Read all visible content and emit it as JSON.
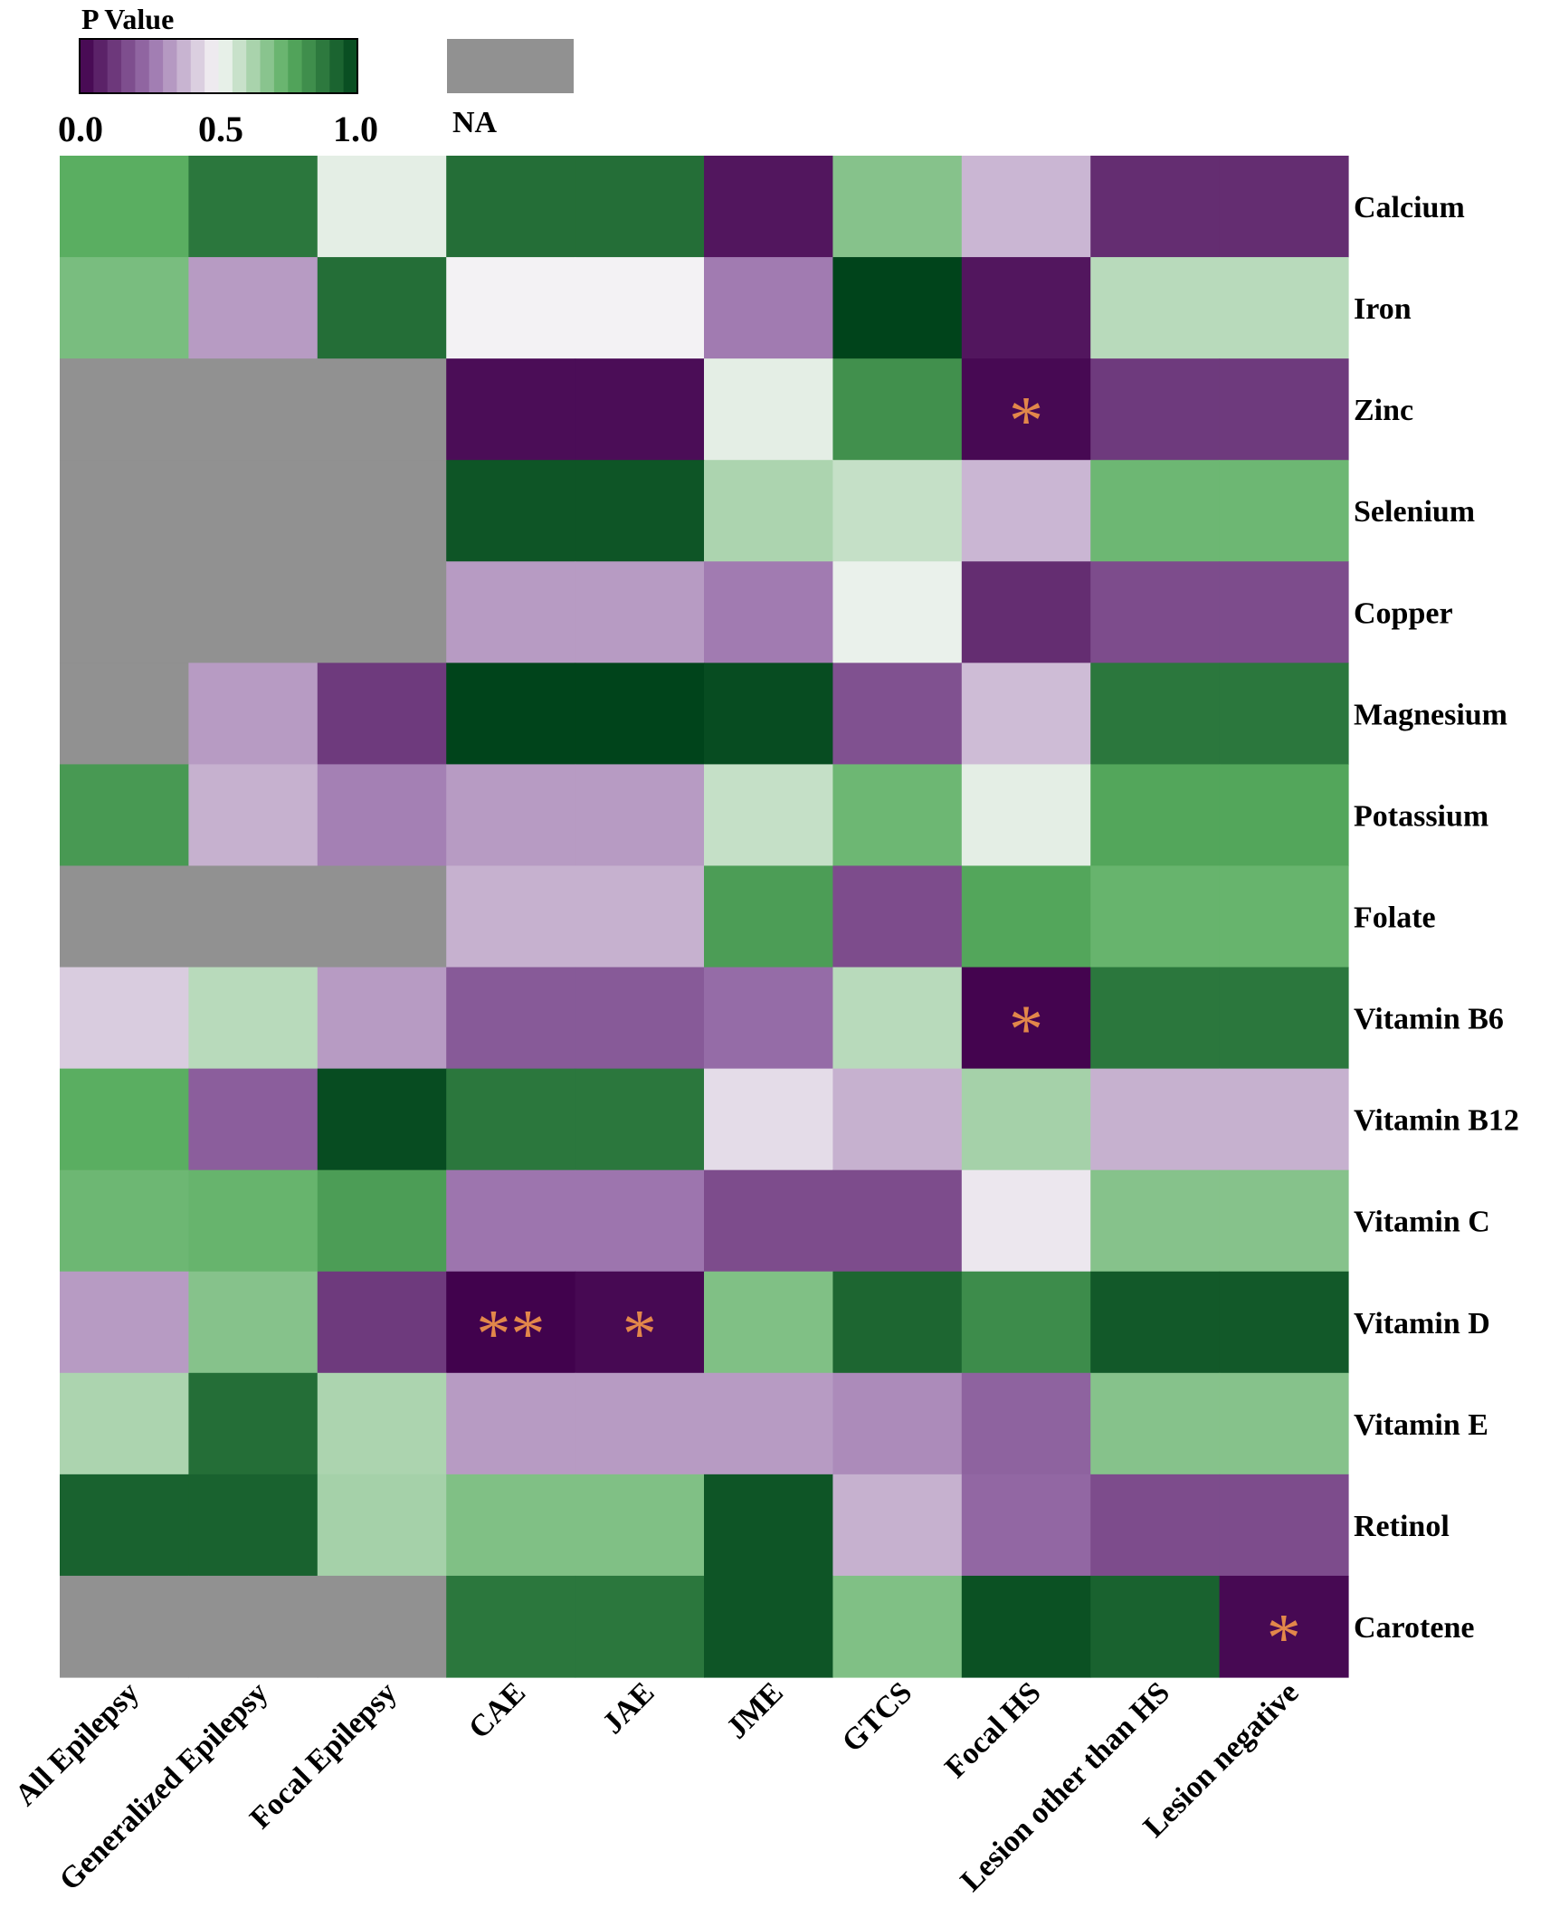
{
  "chart_data": {
    "type": "heatmap",
    "legend": {
      "title": "P Value",
      "ticks": [
        "0.0",
        "0.5",
        "1.0"
      ],
      "na_label": "NA",
      "na_color": "#919191",
      "low_color": "#40004b",
      "mid_color": "#f7f7f7",
      "high_color": "#00441b"
    },
    "significance_color": "#e2874a",
    "x_categories": [
      "All Epilepsy",
      "Generalized Epilepsy",
      "Focal Epilepsy",
      "CAE",
      "JAE",
      "JME",
      "GTCS",
      "Focal HS",
      "Lesion other than HS",
      "Lesion negative"
    ],
    "y_categories": [
      "Calcium",
      "Iron",
      "Zinc",
      "Selenium",
      "Copper",
      "Magnesium",
      "Potassium",
      "Folate",
      "Vitamin B6",
      "Vitamin B12",
      "Vitamin C",
      "Vitamin D",
      "Vitamin E",
      "Retinol",
      "Carotene"
    ],
    "values": [
      [
        0.75,
        0.88,
        0.53,
        0.9,
        0.9,
        0.05,
        0.68,
        0.38,
        0.1,
        0.1
      ],
      [
        0.7,
        0.33,
        0.9,
        0.49,
        0.49,
        0.27,
        1.0,
        0.05,
        0.6,
        0.6
      ],
      [
        null,
        null,
        null,
        0.03,
        0.03,
        0.53,
        0.82,
        0.02,
        0.13,
        0.13
      ],
      [
        null,
        null,
        null,
        0.96,
        0.96,
        0.62,
        0.58,
        0.38,
        0.72,
        0.72
      ],
      [
        null,
        null,
        null,
        0.33,
        0.33,
        0.27,
        0.52,
        0.1,
        0.17,
        0.17
      ],
      [
        null,
        0.33,
        0.13,
        1.0,
        1.0,
        0.98,
        0.18,
        0.39,
        0.88,
        0.88
      ],
      [
        0.8,
        0.37,
        0.28,
        0.33,
        0.33,
        0.58,
        0.72,
        0.53,
        0.77,
        0.77
      ],
      [
        null,
        null,
        null,
        0.37,
        0.37,
        0.79,
        0.17,
        0.77,
        0.73,
        0.73
      ],
      [
        0.42,
        0.6,
        0.33,
        0.2,
        0.2,
        0.24,
        0.6,
        0.01,
        0.88,
        0.88
      ],
      [
        0.75,
        0.21,
        0.98,
        0.88,
        0.88,
        0.45,
        0.37,
        0.63,
        0.37,
        0.37
      ],
      [
        0.72,
        0.73,
        0.79,
        0.26,
        0.26,
        0.17,
        0.17,
        0.47,
        0.68,
        0.68
      ],
      [
        0.33,
        0.68,
        0.13,
        0.004,
        0.02,
        0.69,
        0.92,
        0.83,
        0.95,
        0.95
      ],
      [
        0.62,
        0.9,
        0.62,
        0.33,
        0.33,
        0.33,
        0.3,
        0.22,
        0.68,
        0.68
      ],
      [
        0.93,
        0.93,
        0.63,
        0.69,
        0.69,
        0.96,
        0.37,
        0.23,
        0.17,
        0.17
      ],
      [
        null,
        null,
        null,
        0.88,
        0.88,
        0.96,
        0.69,
        0.97,
        0.93,
        0.02
      ]
    ],
    "annotations": [
      {
        "row": "Zinc",
        "col": "Focal HS",
        "label": "*"
      },
      {
        "row": "Vitamin B6",
        "col": "Focal HS",
        "label": "*"
      },
      {
        "row": "Vitamin D",
        "col": "CAE",
        "label": "**"
      },
      {
        "row": "Vitamin D",
        "col": "JAE",
        "label": "*"
      },
      {
        "row": "Carotene",
        "col": "Lesion negative",
        "label": "*"
      }
    ]
  }
}
